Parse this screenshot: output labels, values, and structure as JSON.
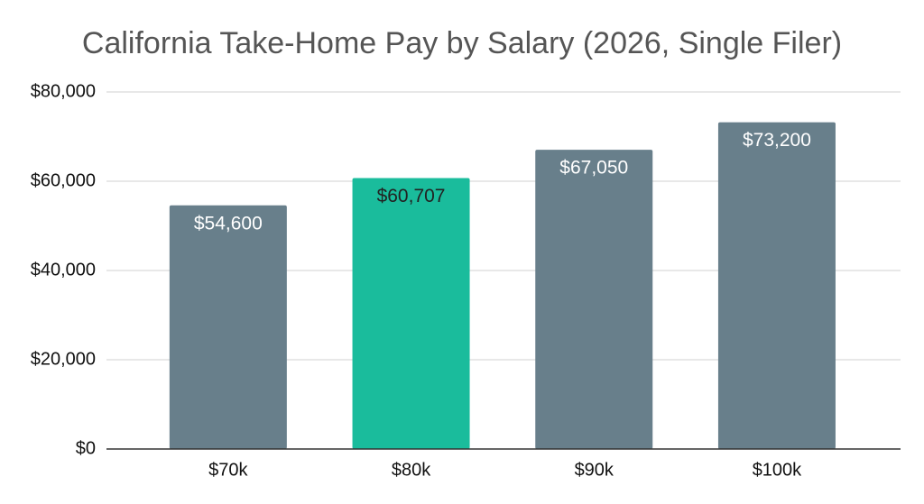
{
  "chart_data": {
    "type": "bar",
    "title": "California Take-Home Pay by Salary (2026, Single Filer)",
    "categories": [
      "$70k",
      "$80k",
      "$90k",
      "$100k"
    ],
    "values": [
      54600,
      60707,
      67050,
      73200
    ],
    "value_labels": [
      "$54,600",
      "$60,707",
      "$67,050",
      "$73,200"
    ],
    "colors": [
      "#687f8b",
      "#1abc9c",
      "#687f8b",
      "#687f8b"
    ],
    "value_label_colors": [
      "#ffffff",
      "#222222",
      "#ffffff",
      "#ffffff"
    ],
    "ylim": [
      0,
      80000
    ],
    "yticks": [
      {
        "value": 0,
        "label": "$0"
      },
      {
        "value": 20000,
        "label": "$20,000"
      },
      {
        "value": 40000,
        "label": "$40,000"
      },
      {
        "value": 60000,
        "label": "$60,000"
      },
      {
        "value": 80000,
        "label": "$80,000"
      }
    ],
    "grid": true
  }
}
